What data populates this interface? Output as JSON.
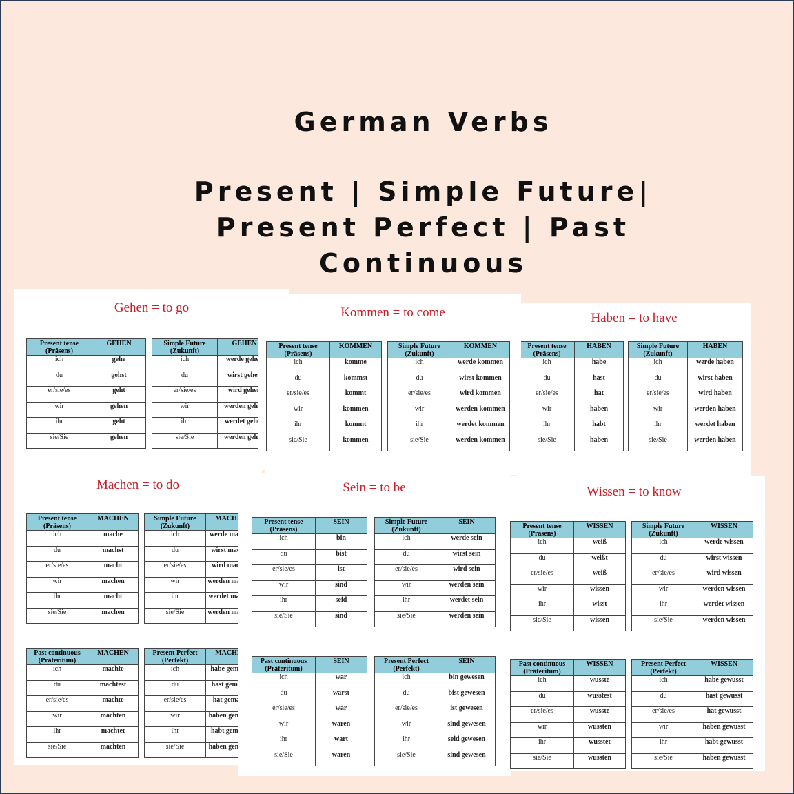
{
  "heading": {
    "title": "German Verbs",
    "subtitle_line1": "Present | Simple Future|",
    "subtitle_line2": "Present Perfect | Past",
    "subtitle_line3": "Continuous"
  },
  "colors": {
    "background": "#fce8dc",
    "header_fill": "#92cddc",
    "title_red": "#c8202a"
  },
  "pages": [
    {
      "title": "Gehen = to go",
      "tables": [
        {
          "header": [
            "Present tense (Präsens)",
            "GEHEN"
          ],
          "rows": [
            [
              "ich",
              "gehe"
            ],
            [
              "du",
              "gehst"
            ],
            [
              "er/sie/es",
              "geht"
            ],
            [
              "wir",
              "gehen"
            ],
            [
              "ihr",
              "geht"
            ],
            [
              "sie/Sie",
              "gehen"
            ]
          ]
        },
        {
          "header": [
            "Simple Future (Zukunft)",
            "GEHEN"
          ],
          "rows": [
            [
              "ich",
              "werde gehen"
            ],
            [
              "du",
              "wirst gehen"
            ],
            [
              "er/sie/es",
              "wird gehen"
            ],
            [
              "wir",
              "werden gehen"
            ],
            [
              "ihr",
              "werdet gehen"
            ],
            [
              "sie/Sie",
              "werden gehen"
            ]
          ]
        }
      ]
    },
    {
      "title": "Kommen = to come",
      "tables": [
        {
          "header": [
            "Present tense (Präsens)",
            "KOMMEN"
          ],
          "rows": [
            [
              "ich",
              "komme"
            ],
            [
              "du",
              "kommst"
            ],
            [
              "er/sie/es",
              "kommt"
            ],
            [
              "wir",
              "kommen"
            ],
            [
              "ihr",
              "kommt"
            ],
            [
              "sie/Sie",
              "kommen"
            ]
          ]
        },
        {
          "header": [
            "Simple Future (Zukunft)",
            "KOMMEN"
          ],
          "rows": [
            [
              "ich",
              "werde kommen"
            ],
            [
              "du",
              "wirst kommen"
            ],
            [
              "er/sie/es",
              "wird kommen"
            ],
            [
              "wir",
              "werden kommen"
            ],
            [
              "ihr",
              "werdet kommen"
            ],
            [
              "sie/Sie",
              "werden kommen"
            ]
          ]
        }
      ]
    },
    {
      "title": "Haben = to have",
      "tables": [
        {
          "header": [
            "Present tense (Präsens)",
            "HABEN"
          ],
          "rows": [
            [
              "ich",
              "habe"
            ],
            [
              "du",
              "hast"
            ],
            [
              "er/sie/es",
              "hat"
            ],
            [
              "wir",
              "haben"
            ],
            [
              "ihr",
              "habt"
            ],
            [
              "sie/Sie",
              "haben"
            ]
          ]
        },
        {
          "header": [
            "Simple Future (Zukunft)",
            "HABEN"
          ],
          "rows": [
            [
              "ich",
              "werde haben"
            ],
            [
              "du",
              "wirst haben"
            ],
            [
              "er/sie/es",
              "wird haben"
            ],
            [
              "wir",
              "werden haben"
            ],
            [
              "ihr",
              "werdet haben"
            ],
            [
              "sie/Sie",
              "werden haben"
            ]
          ]
        }
      ]
    },
    {
      "title": "Machen = to do",
      "tables": [
        {
          "header": [
            "Present tense (Präsens)",
            "MACHEN"
          ],
          "rows": [
            [
              "ich",
              "mache"
            ],
            [
              "du",
              "machst"
            ],
            [
              "er/sie/es",
              "macht"
            ],
            [
              "wir",
              "machen"
            ],
            [
              "ihr",
              "macht"
            ],
            [
              "sie/Sie",
              "machen"
            ]
          ]
        },
        {
          "header": [
            "Simple Future (Zukunft)",
            "MACHEN"
          ],
          "rows": [
            [
              "ich",
              "werde machen"
            ],
            [
              "du",
              "wirst machen"
            ],
            [
              "er/sie/es",
              "wird machen"
            ],
            [
              "wir",
              "werden machen"
            ],
            [
              "ihr",
              "werdet machen"
            ],
            [
              "sie/Sie",
              "werden machen"
            ]
          ]
        },
        {
          "header": [
            "Past continuous (Präteritum)",
            "MACHEN"
          ],
          "rows": [
            [
              "ich",
              "machte"
            ],
            [
              "du",
              "machtest"
            ],
            [
              "er/sie/es",
              "machte"
            ],
            [
              "wir",
              "machten"
            ],
            [
              "ihr",
              "machtet"
            ],
            [
              "sie/Sie",
              "machten"
            ]
          ]
        },
        {
          "header": [
            "Present Perfect (Perfekt)",
            "MACHEN"
          ],
          "rows": [
            [
              "ich",
              "habe gemacht"
            ],
            [
              "du",
              "hast gemacht"
            ],
            [
              "er/sie/es",
              "hat gemacht"
            ],
            [
              "wir",
              "haben gemacht"
            ],
            [
              "ihr",
              "habt gemacht"
            ],
            [
              "sie/Sie",
              "haben gemacht"
            ]
          ]
        }
      ]
    },
    {
      "title": "Sein = to be",
      "tables": [
        {
          "header": [
            "Present tense (Präsens)",
            "SEIN"
          ],
          "rows": [
            [
              "ich",
              "bin"
            ],
            [
              "du",
              "bist"
            ],
            [
              "er/sie/es",
              "ist"
            ],
            [
              "wir",
              "sind"
            ],
            [
              "ihr",
              "seid"
            ],
            [
              "sie/Sie",
              "sind"
            ]
          ]
        },
        {
          "header": [
            "Simple Future (Zukunft)",
            "SEIN"
          ],
          "rows": [
            [
              "ich",
              "werde sein"
            ],
            [
              "du",
              "wirst sein"
            ],
            [
              "er/sie/es",
              "wird sein"
            ],
            [
              "wir",
              "werden sein"
            ],
            [
              "ihr",
              "werdet sein"
            ],
            [
              "sie/Sie",
              "werden sein"
            ]
          ]
        },
        {
          "header": [
            "Past continuous (Präteritum)",
            "SEIN"
          ],
          "rows": [
            [
              "ich",
              "war"
            ],
            [
              "du",
              "warst"
            ],
            [
              "er/sie/es",
              "war"
            ],
            [
              "wir",
              "waren"
            ],
            [
              "ihr",
              "wart"
            ],
            [
              "sie/Sie",
              "waren"
            ]
          ]
        },
        {
          "header": [
            "Present Perfect (Perfekt)",
            "SEIN"
          ],
          "rows": [
            [
              "ich",
              "bin gewesen"
            ],
            [
              "du",
              "bist gewesen"
            ],
            [
              "er/sie/es",
              "ist gewesen"
            ],
            [
              "wir",
              "sind gewesen"
            ],
            [
              "ihr",
              "seid gewesen"
            ],
            [
              "sie/Sie",
              "sind gewesen"
            ]
          ]
        }
      ]
    },
    {
      "title": "Wissen = to know",
      "tables": [
        {
          "header": [
            "Present tense (Präsens)",
            "WISSEN"
          ],
          "rows": [
            [
              "ich",
              "weiß"
            ],
            [
              "du",
              "weißt"
            ],
            [
              "er/sie/es",
              "weiß"
            ],
            [
              "wir",
              "wissen"
            ],
            [
              "ihr",
              "wisst"
            ],
            [
              "sie/Sie",
              "wissen"
            ]
          ]
        },
        {
          "header": [
            "Simple Future (Zukunft)",
            "WISSEN"
          ],
          "rows": [
            [
              "ich",
              "werde wissen"
            ],
            [
              "du",
              "wirst wissen"
            ],
            [
              "er/sie/es",
              "wird wissen"
            ],
            [
              "wir",
              "werden wissen"
            ],
            [
              "ihr",
              "werdet wissen"
            ],
            [
              "sie/Sie",
              "werden wissen"
            ]
          ]
        },
        {
          "header": [
            "Past continuous (Präteritum)",
            "WISSEN"
          ],
          "rows": [
            [
              "ich",
              "wusste"
            ],
            [
              "du",
              "wusstest"
            ],
            [
              "er/sie/es",
              "wusste"
            ],
            [
              "wir",
              "wussten"
            ],
            [
              "ihr",
              "wusstet"
            ],
            [
              "sie/Sie",
              "wussten"
            ]
          ]
        },
        {
          "header": [
            "Present Perfect (Perfekt)",
            "WISSEN"
          ],
          "rows": [
            [
              "ich",
              "habe gewusst"
            ],
            [
              "du",
              "hast gewusst"
            ],
            [
              "er/sie/es",
              "hat gewusst"
            ],
            [
              "wir",
              "haben gewusst"
            ],
            [
              "ihr",
              "habt gewusst"
            ],
            [
              "sie/Sie",
              "haben gewusst"
            ]
          ]
        }
      ]
    }
  ]
}
